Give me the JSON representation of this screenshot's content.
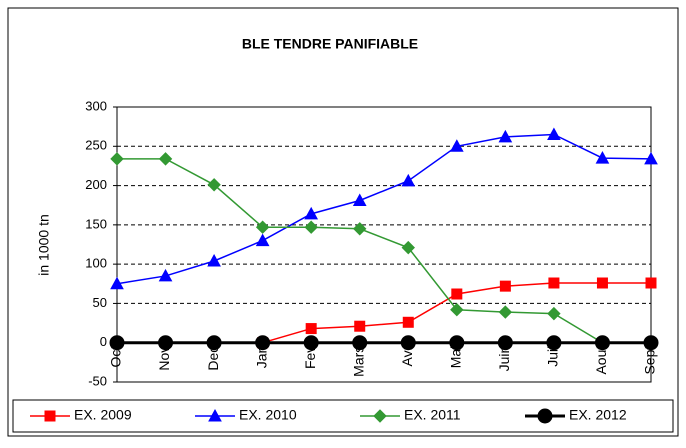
{
  "chart_data": {
    "type": "line",
    "title": "BLE TENDRE PANIFIABLE",
    "y_label": "in 1000 tn",
    "categories": [
      "Oct",
      "Nov",
      "Dec",
      "Jan",
      "Fev",
      "Mars",
      "Avr",
      "Mai",
      "Juin",
      "Juil",
      "Aout",
      "Sept"
    ],
    "series": [
      {
        "name": "EX. 2009",
        "color": "#ff0000",
        "marker": "square",
        "values": [
          null,
          null,
          null,
          0,
          18,
          21,
          26,
          62,
          72,
          76,
          76,
          76
        ]
      },
      {
        "name": "EX. 2010",
        "color": "#0000ff",
        "marker": "triangle",
        "values": [
          75,
          85,
          104,
          130,
          164,
          181,
          206,
          250,
          262,
          265,
          235,
          234
        ]
      },
      {
        "name": "EX. 2011",
        "color": "#339933",
        "marker": "diamond",
        "values": [
          234,
          234,
          201,
          147,
          147,
          145,
          121,
          42,
          39,
          37,
          0,
          null
        ]
      },
      {
        "name": "EX. 2012",
        "color": "#000000",
        "marker": "circle",
        "values": [
          0,
          0,
          0,
          0,
          0,
          0,
          0,
          0,
          0,
          0,
          0,
          0
        ]
      }
    ],
    "ylim": [
      -50,
      300
    ],
    "yticks": [
      -50,
      0,
      50,
      100,
      150,
      200,
      250,
      300
    ],
    "grid": true,
    "legend": "bottom"
  }
}
